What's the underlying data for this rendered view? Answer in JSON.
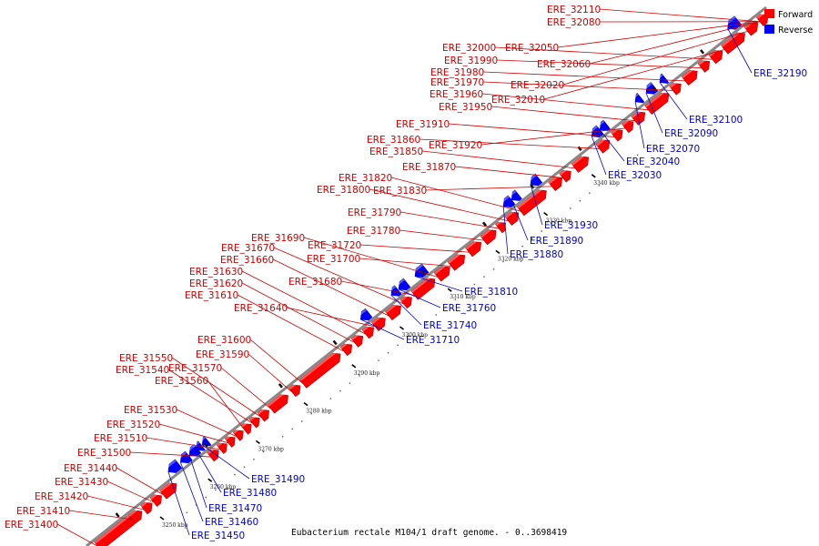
{
  "caption": "Eubacterium rectale M104/1 draft genome. - 0..3698419",
  "legend": [
    {
      "label": "Forward",
      "color": "#ff0000"
    },
    {
      "label": "Reverse",
      "color": "#0000ff"
    }
  ],
  "colors": {
    "forward": "#ff0000",
    "reverse": "#0000ff",
    "axis": "#888888"
  },
  "ticks": [
    {
      "label": "3250 kbp",
      "kbp": 3250
    },
    {
      "label": "3260 kbp",
      "kbp": 3260
    },
    {
      "label": "3270 kbp",
      "kbp": 3270
    },
    {
      "label": "3280 kbp",
      "kbp": 3280
    },
    {
      "label": "3290 kbp",
      "kbp": 3290
    },
    {
      "label": "3300 kbp",
      "kbp": 3300
    },
    {
      "label": "3310 kbp",
      "kbp": 3310
    },
    {
      "label": "3320 kbp",
      "kbp": 3320
    },
    {
      "label": "3330 kbp",
      "kbp": 3330
    },
    {
      "label": "3340 kbp",
      "kbp": 3340
    }
  ],
  "forward_genes": [
    "ERE_31400",
    "ERE_31410",
    "ERE_31420",
    "ERE_31430",
    "ERE_31440",
    "ERE_31500",
    "ERE_31510",
    "ERE_31520",
    "ERE_31530",
    "ERE_31560",
    "ERE_31540",
    "ERE_31550",
    "ERE_31570",
    "ERE_31590",
    "ERE_31600",
    "ERE_31610",
    "ERE_31620",
    "ERE_31630",
    "ERE_31640",
    "ERE_31660",
    "ERE_31670",
    "ERE_31680",
    "ERE_31690",
    "ERE_31700",
    "ERE_31720",
    "ERE_31780",
    "ERE_31790",
    "ERE_31800",
    "ERE_31820",
    "ERE_31830",
    "ERE_31870",
    "ERE_31850",
    "ERE_31860",
    "ERE_31910",
    "ERE_31920",
    "ERE_31950",
    "ERE_31960",
    "ERE_31970",
    "ERE_31980",
    "ERE_31990",
    "ERE_32000",
    "ERE_32010",
    "ERE_32020",
    "ERE_32050",
    "ERE_32060",
    "ERE_32080",
    "ERE_32110"
  ],
  "reverse_genes": [
    "ERE_31450",
    "ERE_31460",
    "ERE_31470",
    "ERE_31480",
    "ERE_31490",
    "ERE_31710",
    "ERE_31740",
    "ERE_31760",
    "ERE_31810",
    "ERE_31880",
    "ERE_31890",
    "ERE_31930",
    "ERE_32030",
    "ERE_32040",
    "ERE_32070",
    "ERE_32090",
    "ERE_32100",
    "ERE_32190"
  ]
}
